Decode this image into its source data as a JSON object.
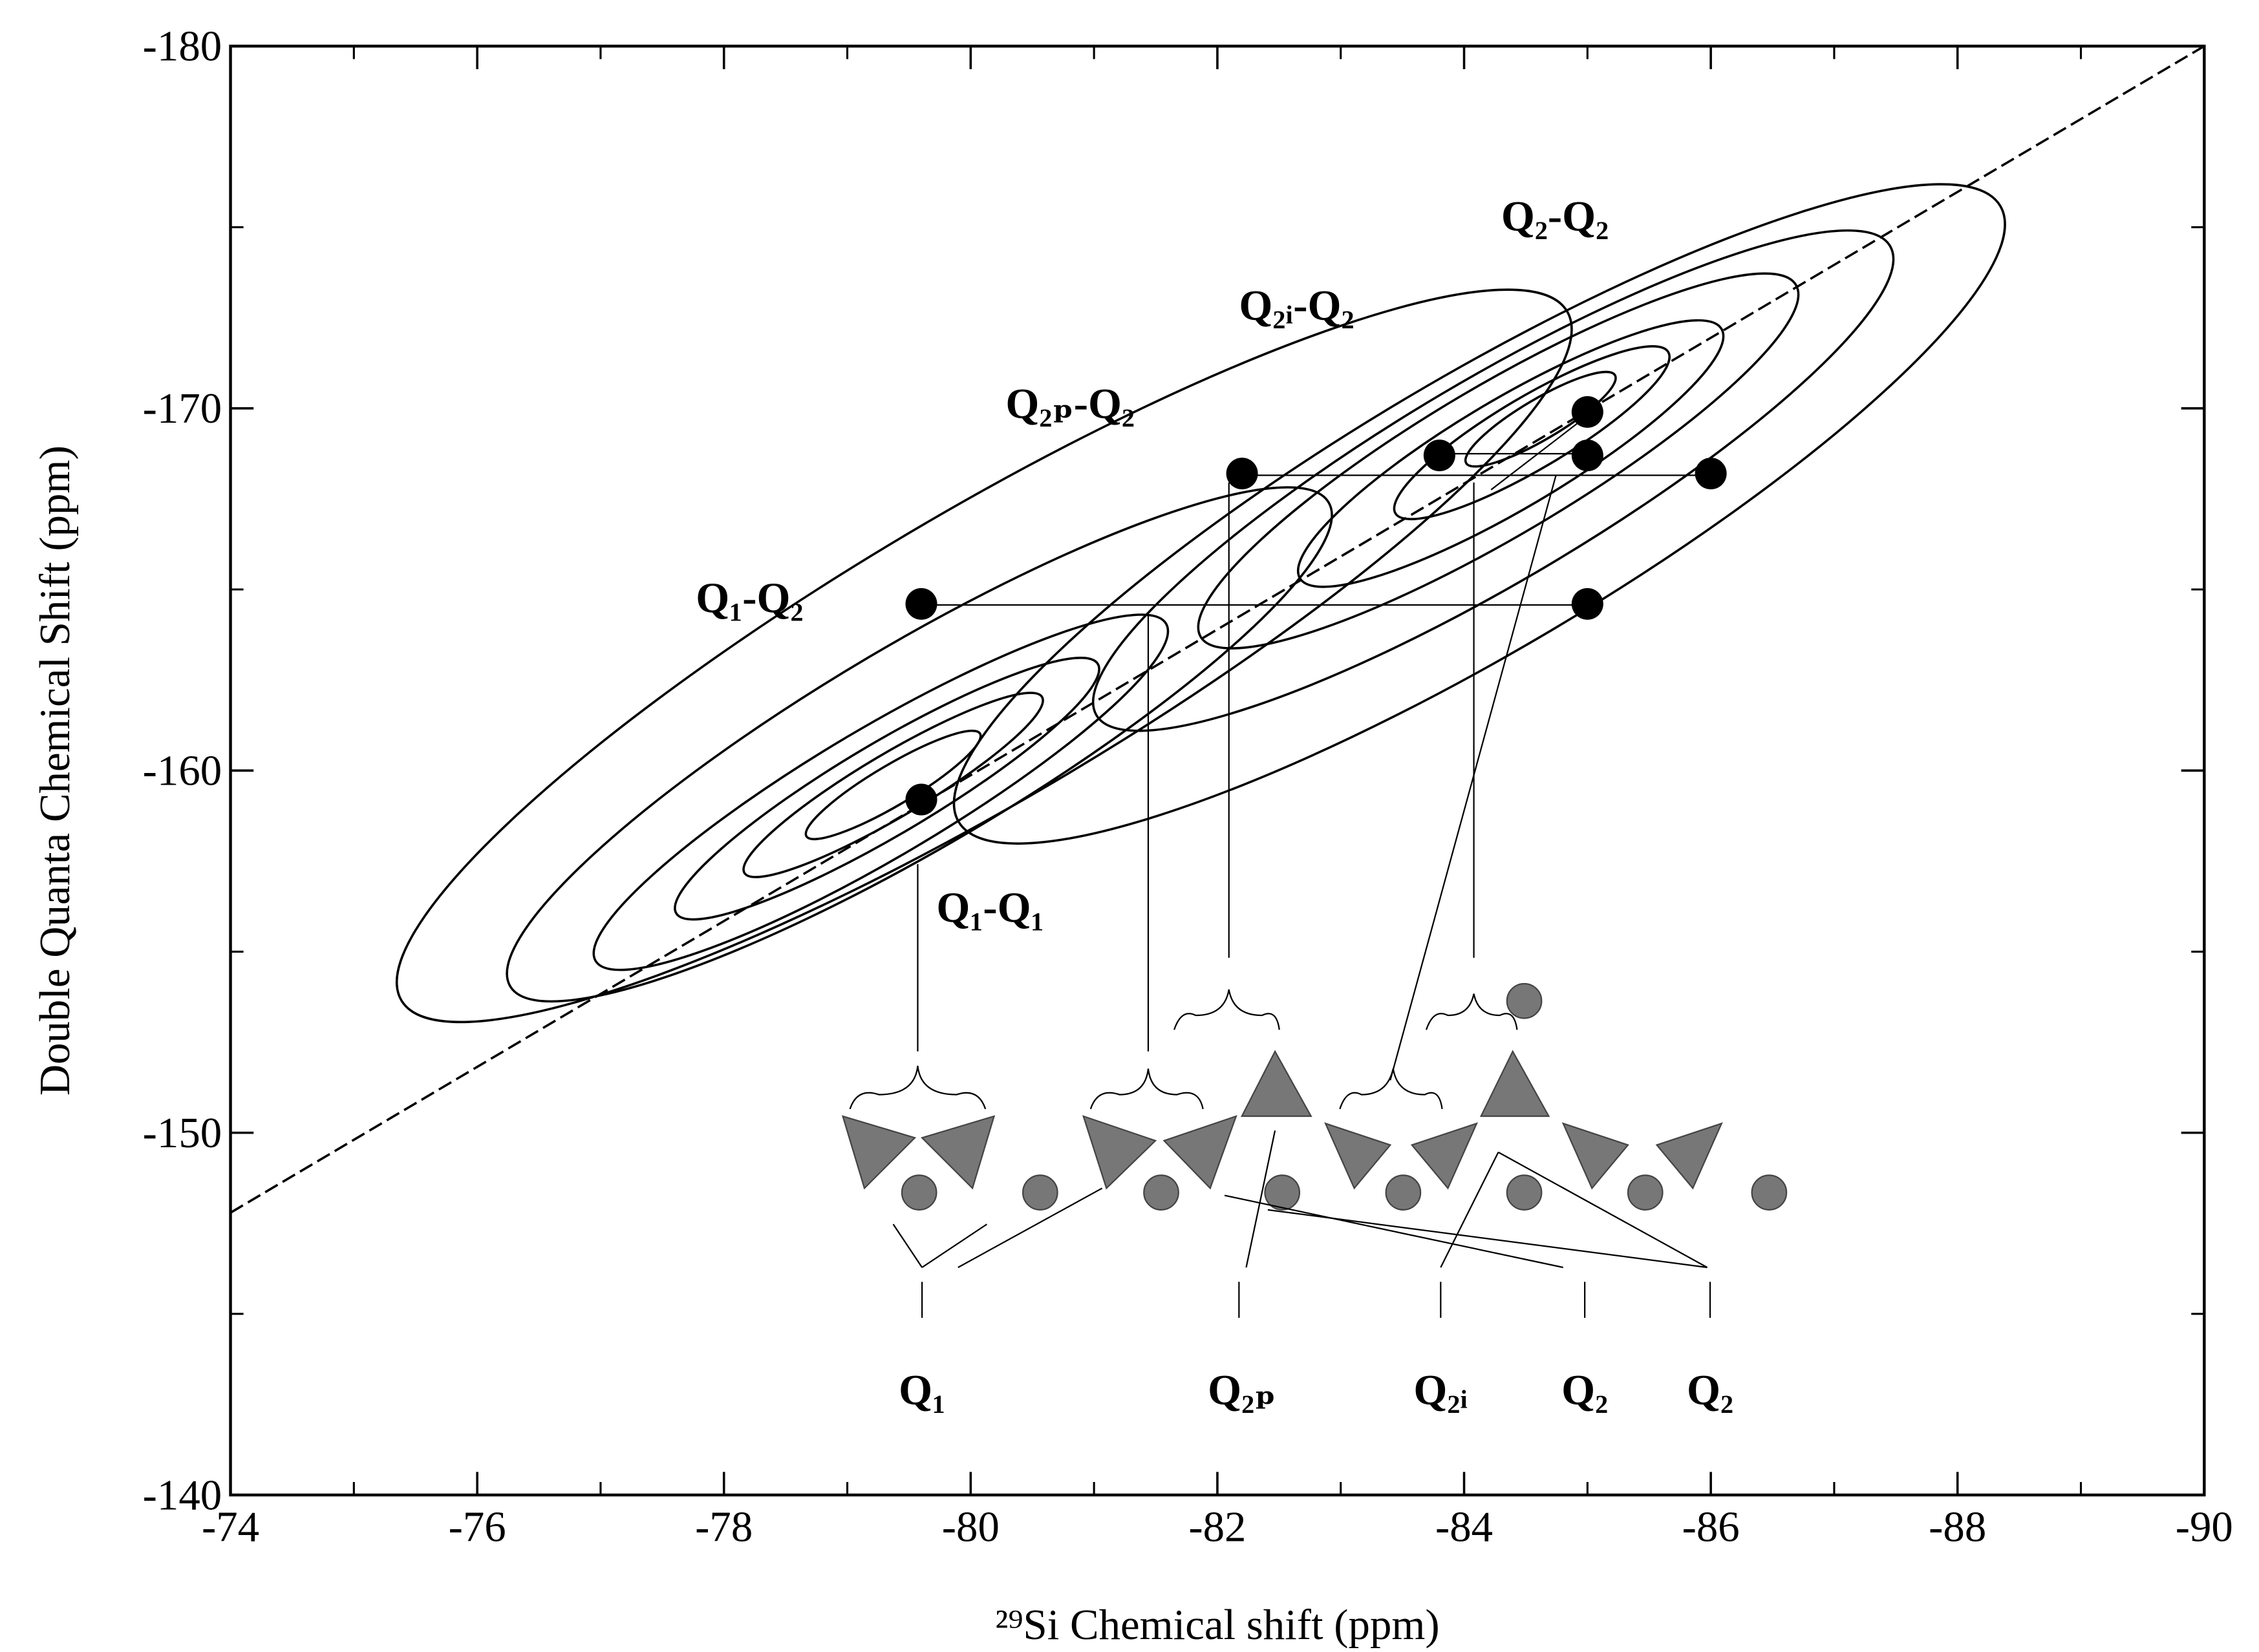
{
  "chart_data": {
    "type": "scatter",
    "x_label": "²⁹Si Chemical shift (ppm)",
    "y_label": "Double Quanta Chemical Shift (ppm)",
    "x": [
      -79.6,
      -79.6,
      -85,
      -82.2,
      -83.8,
      -85,
      -85,
      -86
    ],
    "values": [
      -159.2,
      -164.6,
      -164.6,
      -168.2,
      -168.7,
      -169.9,
      -168.7,
      -168.2
    ],
    "color": "#000000",
    "xlim": [
      -74,
      -90
    ],
    "xticks": [
      -74,
      -76,
      -78,
      -80,
      -82,
      -84,
      -86,
      -88,
      -90
    ],
    "ylim": [
      -140,
      -180
    ],
    "yticks": [
      -140,
      -150,
      -160,
      -170,
      -180
    ],
    "annotations": [
      "Q₁-Q₂",
      "Q₂ₚ-Q₂",
      "Q₂ᵢ-Q₂",
      "Q₂-Q₂",
      "Q₁-Q₁",
      "Q₁",
      "Q₂ₚ",
      "Q₂ᵢ",
      "Q₂",
      "Q₂"
    ]
  }
}
